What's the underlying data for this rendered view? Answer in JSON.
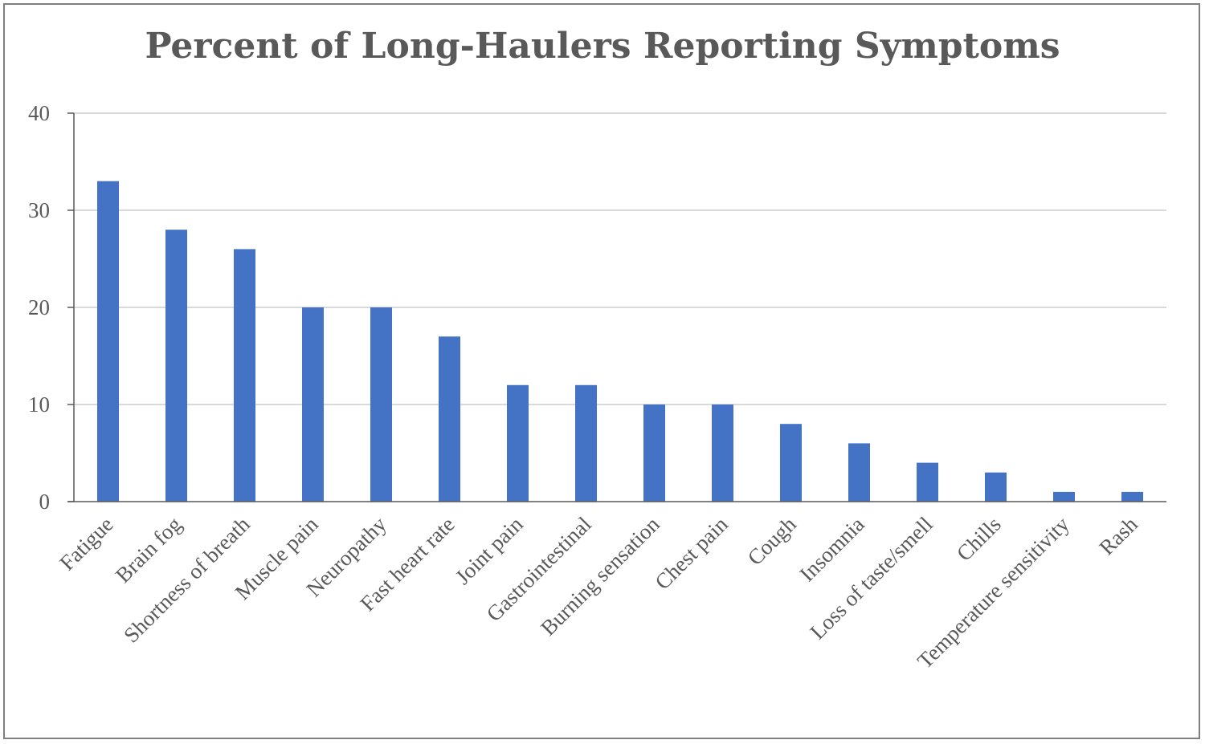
{
  "chart_data": {
    "type": "bar",
    "title": "Percent of Long-Haulers Reporting Symptoms",
    "xlabel": "",
    "ylabel": "",
    "categories": [
      "Fatigue",
      "Brain fog",
      "Shortness of breath",
      "Muscle pain",
      "Neuropathy",
      "Fast heart rate",
      "Joint pain",
      "Gastrointestinal",
      "Burning sensation",
      "Chest pain",
      "Cough",
      "Insomnia",
      "Loss of taste/smell",
      "Chills",
      "Temperature sensitivity",
      "Rash"
    ],
    "values": [
      33,
      28,
      26,
      20,
      20,
      17,
      12,
      12,
      10,
      10,
      8,
      6,
      4,
      3,
      1,
      1
    ],
    "ylim": [
      0,
      40
    ],
    "yticks": [
      0,
      10,
      20,
      30,
      40
    ],
    "grid": true,
    "legend": "none",
    "bar_color": "#4472C4",
    "grid_color": "#d9d9d9",
    "axis_color": "#595959"
  }
}
